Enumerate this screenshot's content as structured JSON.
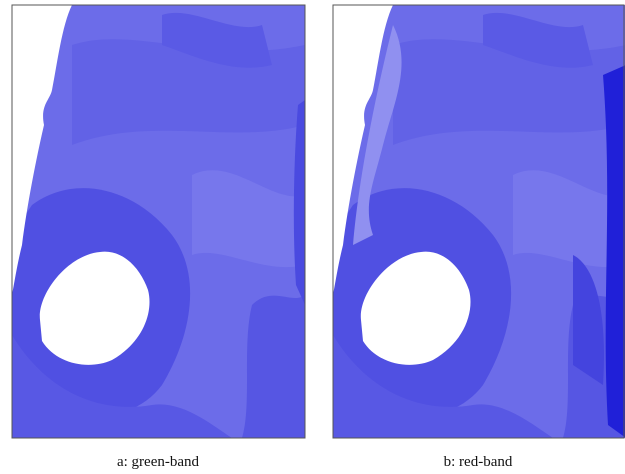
{
  "panels": [
    {
      "caption": "a: green-band"
    },
    {
      "caption": "b: red-band"
    }
  ]
}
